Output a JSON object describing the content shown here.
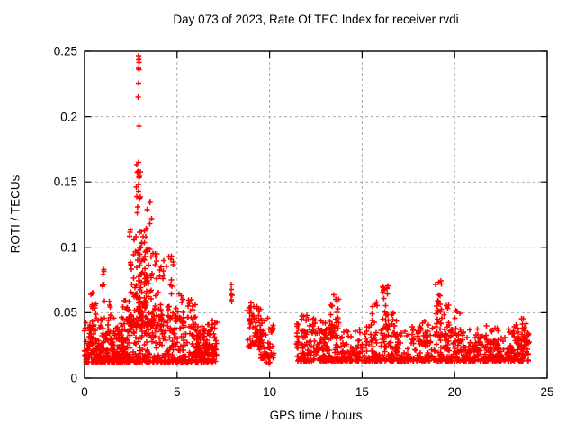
{
  "chart_data": {
    "type": "scatter",
    "title": "Day 073 of 2023, Rate Of TEC Index for receiver rvdi",
    "xlabel": "GPS time / hours",
    "ylabel": "ROTI / TECUs",
    "xlim": [
      0,
      25
    ],
    "ylim": [
      0,
      0.25
    ],
    "x_ticks": [
      0,
      5,
      10,
      15,
      20,
      25
    ],
    "x_tick_labels": [
      "0",
      "5",
      "10",
      "15",
      "20",
      "25"
    ],
    "y_ticks": [
      0,
      0.05,
      0.1,
      0.15,
      0.2,
      0.25
    ],
    "y_tick_labels": [
      "0",
      "0.05",
      "0.1",
      "0.15",
      "0.2",
      "0.25"
    ],
    "grid": true,
    "grid_color": "#aaaaaa",
    "marker": "plus",
    "marker_color": "#ff0000",
    "border_color": "#000000",
    "seed": 73,
    "clusters": [
      {
        "x": [
          0.0,
          7.15
        ],
        "y": [
          0.012,
          0.048
        ],
        "n": 620,
        "k": 2.4
      },
      {
        "x": [
          0.0,
          2.4
        ],
        "y": [
          0.014,
          0.04
        ],
        "n": 120,
        "k": 1.8
      },
      {
        "x": [
          5.9,
          7.15
        ],
        "y": [
          0.018,
          0.04
        ],
        "n": 60,
        "k": 1.8
      },
      {
        "x": [
          0.3,
          0.45
        ],
        "y": [
          0.045,
          0.067
        ],
        "n": 6,
        "k": 1.0
      },
      {
        "x": [
          0.55,
          0.7
        ],
        "y": [
          0.045,
          0.06
        ],
        "n": 5,
        "k": 1.0
      },
      {
        "x": [
          0.95,
          1.1
        ],
        "y": [
          0.05,
          0.088
        ],
        "n": 8,
        "k": 1.0
      },
      {
        "x": [
          1.3,
          1.45
        ],
        "y": [
          0.045,
          0.062
        ],
        "n": 5,
        "k": 1.0
      },
      {
        "x": [
          2.05,
          2.4
        ],
        "y": [
          0.045,
          0.062
        ],
        "n": 9,
        "k": 1.0
      },
      {
        "x": [
          2.4,
          3.4
        ],
        "y": [
          0.04,
          0.115
        ],
        "n": 130,
        "k": 2.2
      },
      {
        "x": [
          2.8,
          3.05
        ],
        "y": [
          0.115,
          0.165
        ],
        "n": 9,
        "k": 1.0
      },
      {
        "x": [
          3.3,
          3.65
        ],
        "y": [
          0.095,
          0.137
        ],
        "n": 6,
        "k": 1.0
      },
      {
        "x": [
          3.25,
          4.3
        ],
        "y": [
          0.04,
          0.1
        ],
        "n": 70,
        "k": 2.0
      },
      {
        "x": [
          4.4,
          4.8
        ],
        "y": [
          0.038,
          0.095
        ],
        "n": 20,
        "k": 1.6
      },
      {
        "x": [
          4.9,
          5.4
        ],
        "y": [
          0.038,
          0.077
        ],
        "n": 18,
        "k": 1.6
      },
      {
        "x": [
          5.5,
          6.1
        ],
        "y": [
          0.038,
          0.062
        ],
        "n": 14,
        "k": 1.5
      },
      {
        "x": [
          7.85,
          8.0
        ],
        "y": [
          0.056,
          0.078
        ],
        "n": 6,
        "k": 1.0
      },
      {
        "x": [
          8.75,
          9.55
        ],
        "y": [
          0.024,
          0.058
        ],
        "n": 60,
        "k": 1.7
      },
      {
        "x": [
          9.45,
          10.35
        ],
        "y": [
          0.015,
          0.046
        ],
        "n": 60,
        "k": 2.0
      },
      {
        "x": [
          9.8,
          10.3
        ],
        "y": [
          0.01,
          0.018
        ],
        "n": 6,
        "k": 1.0
      },
      {
        "x": [
          11.45,
          24.0
        ],
        "y": [
          0.013,
          0.04
        ],
        "n": 760,
        "k": 2.4
      },
      {
        "x": [
          20.3,
          22.6
        ],
        "y": [
          0.013,
          0.028
        ],
        "n": 90,
        "k": 1.8
      },
      {
        "x": [
          11.45,
          12.1
        ],
        "y": [
          0.025,
          0.048
        ],
        "n": 26,
        "k": 1.5
      },
      {
        "x": [
          12.25,
          12.55
        ],
        "y": [
          0.032,
          0.05
        ],
        "n": 9,
        "k": 1.2
      },
      {
        "x": [
          12.55,
          13.1
        ],
        "y": [
          0.022,
          0.046
        ],
        "n": 26,
        "k": 1.6
      },
      {
        "x": [
          13.25,
          13.75
        ],
        "y": [
          0.03,
          0.066
        ],
        "n": 34,
        "k": 1.5
      },
      {
        "x": [
          15.4,
          15.8
        ],
        "y": [
          0.028,
          0.06
        ],
        "n": 18,
        "k": 1.5
      },
      {
        "x": [
          16.1,
          16.45
        ],
        "y": [
          0.032,
          0.075
        ],
        "n": 28,
        "k": 1.4
      },
      {
        "x": [
          16.5,
          17.0
        ],
        "y": [
          0.024,
          0.05
        ],
        "n": 16,
        "k": 1.6
      },
      {
        "x": [
          18.0,
          18.6
        ],
        "y": [
          0.024,
          0.046
        ],
        "n": 16,
        "k": 1.6
      },
      {
        "x": [
          18.95,
          19.35
        ],
        "y": [
          0.032,
          0.075
        ],
        "n": 30,
        "k": 1.4
      },
      {
        "x": [
          19.4,
          19.85
        ],
        "y": [
          0.028,
          0.056
        ],
        "n": 14,
        "k": 1.5
      },
      {
        "x": [
          20.0,
          20.3
        ],
        "y": [
          0.028,
          0.052
        ],
        "n": 10,
        "k": 1.4
      },
      {
        "x": [
          22.8,
          23.9
        ],
        "y": [
          0.018,
          0.046
        ],
        "n": 45,
        "k": 1.6
      },
      {
        "x": [
          23.85,
          24.05
        ],
        "y": [
          0.018,
          0.04
        ],
        "n": 12,
        "k": 1.3
      }
    ],
    "outlier_points": [
      [
        2.93,
        0.2465
      ],
      [
        2.96,
        0.245
      ],
      [
        2.91,
        0.2435
      ],
      [
        2.94,
        0.2415
      ],
      [
        2.92,
        0.237
      ],
      [
        2.95,
        0.236
      ],
      [
        2.93,
        0.2255
      ],
      [
        2.9,
        0.215
      ],
      [
        2.94,
        0.193
      ],
      [
        2.92,
        0.165
      ],
      [
        2.9,
        0.158
      ],
      [
        2.95,
        0.154
      ],
      [
        2.93,
        0.148
      ],
      [
        2.91,
        0.143
      ],
      [
        2.88,
        0.131
      ],
      [
        2.85,
        0.1265
      ],
      [
        3.55,
        0.135
      ],
      [
        3.52,
        0.118
      ]
    ]
  }
}
